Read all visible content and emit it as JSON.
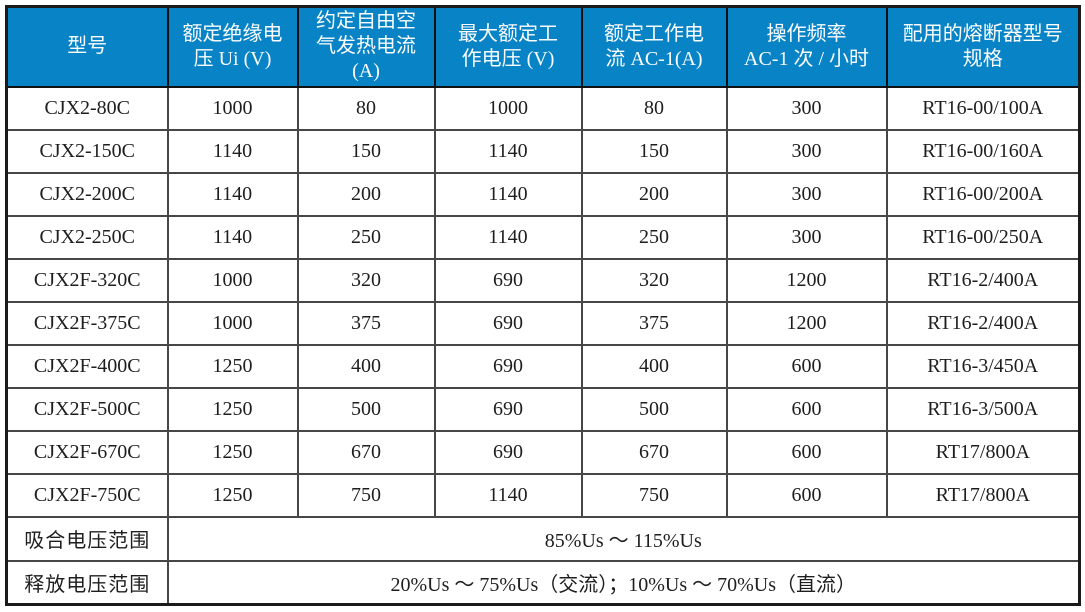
{
  "table": {
    "header": [
      "型号",
      "额定绝缘电\n压 Ui (V)",
      "约定自由空\n气发热电流\n(A)",
      "最大额定工\n作电压 (V)",
      "额定工作电\n流 AC-1(A)",
      "操作频率\nAC-1 次 / 小时",
      "配用的熔断器型号\n规格"
    ],
    "rows": [
      [
        "CJX2-80C",
        "1000",
        "80",
        "1000",
        "80",
        "300",
        "RT16-00/100A"
      ],
      [
        "CJX2-150C",
        "1140",
        "150",
        "1140",
        "150",
        "300",
        "RT16-00/160A"
      ],
      [
        "CJX2-200C",
        "1140",
        "200",
        "1140",
        "200",
        "300",
        "RT16-00/200A"
      ],
      [
        "CJX2-250C",
        "1140",
        "250",
        "1140",
        "250",
        "300",
        "RT16-00/250A"
      ],
      [
        "CJX2F-320C",
        "1000",
        "320",
        "690",
        "320",
        "1200",
        "RT16-2/400A"
      ],
      [
        "CJX2F-375C",
        "1000",
        "375",
        "690",
        "375",
        "1200",
        "RT16-2/400A"
      ],
      [
        "CJX2F-400C",
        "1250",
        "400",
        "690",
        "400",
        "600",
        "RT16-3/450A"
      ],
      [
        "CJX2F-500C",
        "1250",
        "500",
        "690",
        "500",
        "600",
        "RT16-3/500A"
      ],
      [
        "CJX2F-670C",
        "1250",
        "670",
        "690",
        "670",
        "600",
        "RT17/800A"
      ],
      [
        "CJX2F-750C",
        "1250",
        "750",
        "1140",
        "750",
        "600",
        "RT17/800A"
      ]
    ],
    "footer_rows": [
      {
        "label": "吸合电压范围",
        "value": "85%Us ～ 115%Us"
      },
      {
        "label": "释放电压范围",
        "value": "20%Us ～ 75%Us（交流）；10%Us ～ 70%Us（直流）"
      }
    ],
    "colors": {
      "header_bg": "#0883c6",
      "header_text": "#fbfdff",
      "grid_line": "#474747",
      "outer_border": "#1a1a1a"
    }
  }
}
